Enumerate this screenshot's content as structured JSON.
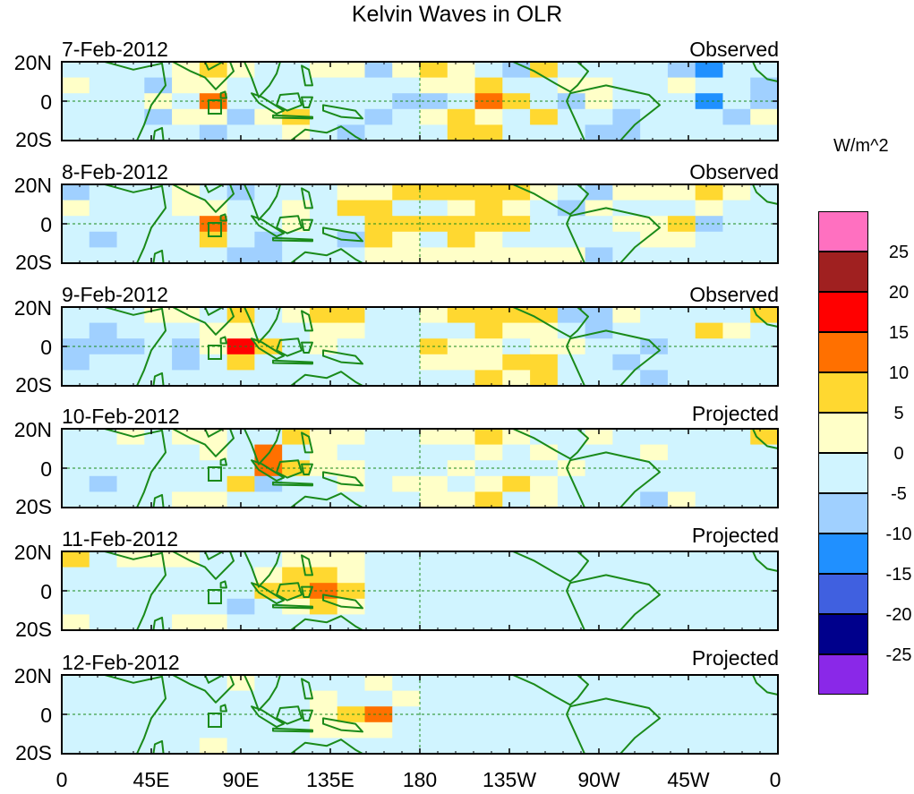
{
  "title": "Kelvin Waves in OLR",
  "panels": [
    {
      "date": "7-Feb-2012",
      "type": "Observed",
      "anoms": [
        [
          -5,
          -3,
          -2,
          -1,
          4,
          8,
          4,
          -2,
          -4,
          3,
          1,
          -6,
          4,
          7,
          2,
          -3,
          -7,
          5,
          -5,
          -2,
          -1,
          -3,
          -9,
          -12,
          -3,
          -5
        ],
        [
          3,
          -4,
          -3,
          -6,
          3,
          2,
          -3,
          -1,
          -3,
          -3,
          -4,
          -4,
          -1,
          1,
          4,
          6,
          -3,
          -2,
          2,
          3,
          -1,
          -3,
          1,
          -2,
          -4,
          -6
        ],
        [
          -5,
          -4,
          -2,
          2,
          -3,
          12,
          -3,
          -4,
          -3,
          -1,
          -3,
          -3,
          -9,
          -6,
          -4,
          10,
          7,
          -2,
          -7,
          2,
          -1,
          -5,
          -3,
          -12,
          -5,
          -6
        ],
        [
          -4,
          -5,
          -2,
          -7,
          2,
          3,
          -7,
          2,
          6,
          -2,
          -5,
          -8,
          -5,
          3,
          5,
          2,
          -2,
          7,
          -2,
          -1,
          -6,
          -4,
          -2,
          -3,
          -6,
          1
        ],
        [
          -3,
          -2,
          -3,
          -4,
          -2,
          -6,
          -2,
          -2,
          3,
          -5,
          -9,
          -1,
          -3,
          -2,
          8,
          9,
          -3,
          -2,
          -3,
          -8,
          -6,
          -1,
          -3,
          -5,
          -4,
          -1
        ]
      ]
    },
    {
      "date": "8-Feb-2012",
      "type": "Observed",
      "anoms": [
        [
          -6,
          -3,
          -3,
          -1,
          3,
          -1,
          -6,
          -4,
          -2,
          -3,
          3,
          4,
          9,
          5,
          6,
          7,
          5,
          4,
          -2,
          -6,
          2,
          2,
          4,
          5,
          1,
          -2
        ],
        [
          4,
          -3,
          -1,
          -1,
          2,
          0,
          -3,
          -5,
          1,
          -4,
          6,
          5,
          -3,
          -1,
          0,
          5,
          3,
          -2,
          -6,
          1,
          -1,
          -3,
          -3,
          1,
          -2,
          -4
        ],
        [
          -1,
          -5,
          -3,
          -3,
          -2,
          14,
          -5,
          -3,
          1,
          -2,
          -1,
          6,
          7,
          5,
          7,
          7,
          6,
          -1,
          -4,
          -4,
          1,
          3,
          6,
          -8,
          -2,
          -4
        ],
        [
          -4,
          -6,
          -4,
          -3,
          -3,
          8,
          -1,
          -8,
          -3,
          -2,
          -7,
          6,
          1,
          -5,
          5,
          4,
          -4,
          -3,
          -5,
          -5,
          -3,
          2,
          3,
          -3,
          -3,
          -4
        ],
        [
          -5,
          -2,
          -3,
          -4,
          -2,
          -4,
          -6,
          -9,
          -2,
          -2,
          -3,
          3,
          2,
          4,
          3,
          4,
          3,
          2,
          2,
          -6,
          -1,
          -3,
          -3,
          -1,
          -2,
          -4
        ]
      ]
    },
    {
      "date": "9-Feb-2012",
      "type": "Observed",
      "anoms": [
        [
          -3,
          -5,
          -3,
          2,
          4,
          -2,
          5,
          -4,
          3,
          6,
          5,
          -2,
          -3,
          3,
          5,
          6,
          5,
          6,
          -6,
          -8,
          2,
          -2,
          -3,
          -1,
          -1,
          5
        ],
        [
          -3,
          -6,
          -2,
          -4,
          -3,
          2,
          4,
          -3,
          -4,
          1,
          3,
          -2,
          -2,
          -3,
          -3,
          5,
          4,
          4,
          -4,
          -8,
          -3,
          -3,
          -3,
          5,
          2,
          -2
        ],
        [
          -6,
          -6,
          -6,
          -3,
          -6,
          2,
          15,
          7,
          -4,
          1,
          -1,
          -4,
          -1,
          5,
          2,
          3,
          -3,
          2,
          4,
          -1,
          -5,
          -6,
          -2,
          -1,
          -2,
          -5
        ],
        [
          -6,
          -5,
          -4,
          -5,
          -6,
          -3,
          8,
          -3,
          -4,
          -1,
          -2,
          -2,
          -4,
          4,
          3,
          4,
          5,
          5,
          -1,
          -1,
          -7,
          -3,
          -4,
          -3,
          -3,
          -5
        ],
        [
          -3,
          -3,
          -5,
          -1,
          -2,
          -3,
          -4,
          -3,
          -2,
          -3,
          -1,
          -5,
          -4,
          -2,
          -1,
          5,
          3,
          5,
          -2,
          -4,
          -4,
          -8,
          -4,
          -3,
          -2,
          -2
        ]
      ]
    },
    {
      "date": "10-Feb-2012",
      "type": "Projected",
      "anoms": [
        [
          -2,
          -3,
          2,
          -1,
          2,
          2,
          -1,
          -4,
          6,
          2,
          4,
          -1,
          -3,
          4,
          4,
          7,
          3,
          -2,
          -2,
          4,
          -2,
          -1,
          -3,
          -4,
          -3,
          8
        ],
        [
          -4,
          -1,
          -4,
          -2,
          -3,
          4,
          -3,
          10,
          -3,
          3,
          -1,
          -2,
          -3,
          -2,
          -1,
          4,
          -1,
          3,
          -3,
          -5,
          -1,
          1,
          -3,
          -2,
          -2,
          -1
        ],
        [
          -3,
          -5,
          -4,
          -4,
          -5,
          -3,
          -2,
          10,
          6,
          4,
          2,
          -4,
          -4,
          -1,
          3,
          -1,
          -1,
          -4,
          4,
          -3,
          -4,
          -3,
          -2,
          -1,
          -2,
          -5
        ],
        [
          -4,
          -6,
          -3,
          -5,
          -5,
          -3,
          5,
          -6,
          -4,
          -2,
          4,
          -4,
          2,
          3,
          -2,
          4,
          5,
          2,
          -3,
          -5,
          -3,
          -4,
          -3,
          -1,
          -3,
          -4
        ],
        [
          -2,
          -3,
          -3,
          -2,
          3,
          2,
          -2,
          -3,
          -3,
          -3,
          -1,
          -3,
          -1,
          4,
          3,
          5,
          -1,
          2,
          -3,
          -3,
          -5,
          -6,
          1,
          -1,
          -3,
          -5
        ]
      ]
    },
    {
      "date": "11-Feb-2012",
      "type": "Projected",
      "anoms": [
        [
          5,
          -2,
          2,
          2,
          3,
          -3,
          -2,
          -5,
          4,
          2,
          3,
          -2,
          -1,
          -1,
          -2,
          -3,
          -2,
          -3,
          -1,
          -2,
          -2,
          -3,
          -1,
          -2,
          -1,
          -2
        ],
        [
          -4,
          -3,
          -3,
          -2,
          -1,
          -2,
          -4,
          3,
          8,
          5,
          4,
          -1,
          -4,
          -3,
          -3,
          -1,
          -2,
          -3,
          -1,
          -4,
          -3,
          -2,
          -1,
          -2,
          -2,
          -1
        ],
        [
          -4,
          -3,
          -3,
          -4,
          -3,
          -4,
          -2,
          7,
          8,
          12,
          7,
          -3,
          -1,
          -2,
          -2,
          -1,
          -2,
          -2,
          -3,
          -3,
          -5,
          -2,
          -1,
          -2,
          -3,
          -2
        ],
        [
          -3,
          -3,
          -4,
          -4,
          -2,
          -3,
          -6,
          -2,
          3,
          5,
          3,
          -2,
          -2,
          -3,
          -1,
          -1,
          -3,
          -1,
          -3,
          -2,
          -3,
          -2,
          -3,
          -3,
          -2,
          -1
        ],
        [
          4,
          -2,
          -2,
          -1,
          4,
          3,
          -3,
          -3,
          -3,
          -2,
          -1,
          -1,
          -2,
          -2,
          -1,
          -1,
          -2,
          -3,
          -2,
          -3,
          -2,
          -1,
          -2,
          -3,
          -2,
          -3
        ]
      ]
    },
    {
      "date": "12-Feb-2012",
      "type": "Projected",
      "anoms": [
        [
          -2,
          -1,
          -2,
          -1,
          -1,
          -2,
          3,
          -2,
          -3,
          -2,
          -1,
          4,
          -1,
          -2,
          -1,
          -1,
          -2,
          -1,
          -2,
          -1,
          -1,
          -2,
          -1,
          -2,
          -1,
          -2
        ],
        [
          -3,
          -2,
          -3,
          -2,
          -1,
          -2,
          -2,
          -3,
          -2,
          3,
          -1,
          -3,
          4,
          -2,
          -3,
          -2,
          -3,
          -2,
          -1,
          -3,
          -2,
          -1,
          -2,
          -2,
          -3,
          -2
        ],
        [
          -2,
          -2,
          -1,
          -3,
          -4,
          -1,
          -2,
          -3,
          -1,
          3,
          7,
          11,
          -2,
          -3,
          -2,
          -2,
          -3,
          -3,
          -2,
          -2,
          -3,
          -2,
          -3,
          -1,
          -2,
          -1
        ],
        [
          -3,
          -2,
          -2,
          -1,
          -2,
          -3,
          -3,
          -2,
          -2,
          3,
          4,
          2,
          -3,
          -2,
          -2,
          -3,
          -2,
          -1,
          -3,
          -2,
          -2,
          -3,
          -2,
          -2,
          -1,
          -2
        ],
        [
          -2,
          -1,
          -2,
          -3,
          -2,
          4,
          -2,
          -3,
          -2,
          -2,
          -1,
          -1,
          -2,
          -3,
          -2,
          -1,
          -1,
          -2,
          -2,
          -1,
          -2,
          -1,
          -2,
          -2,
          -2,
          -1
        ]
      ]
    }
  ],
  "y_labels": [
    "20N",
    "0",
    "20S"
  ],
  "x_labels": [
    "0",
    "45E",
    "90E",
    "135E",
    "180",
    "135W",
    "90W",
    "45W",
    "0"
  ],
  "colorbar": {
    "title": "W/m^2",
    "labels": [
      "25",
      "20",
      "15",
      "10",
      "5",
      "0",
      "-5",
      "-10",
      "-15",
      "-20",
      "-25"
    ],
    "colors": [
      "#ff70c0",
      "#a02020",
      "#ff0000",
      "#ff7000",
      "#ffd830",
      "#ffffc8",
      "#d0f4ff",
      "#a0d0ff",
      "#2090ff",
      "#4060e0",
      "#00008c",
      "#8a28e8"
    ],
    "thresholds": [
      25,
      20,
      15,
      10,
      5,
      0,
      -5,
      -10,
      -15,
      -20,
      -25
    ]
  },
  "colors": {
    "coast": "#1a8a1a",
    "guide": "#1a8a1a",
    "frame": "#000000"
  }
}
